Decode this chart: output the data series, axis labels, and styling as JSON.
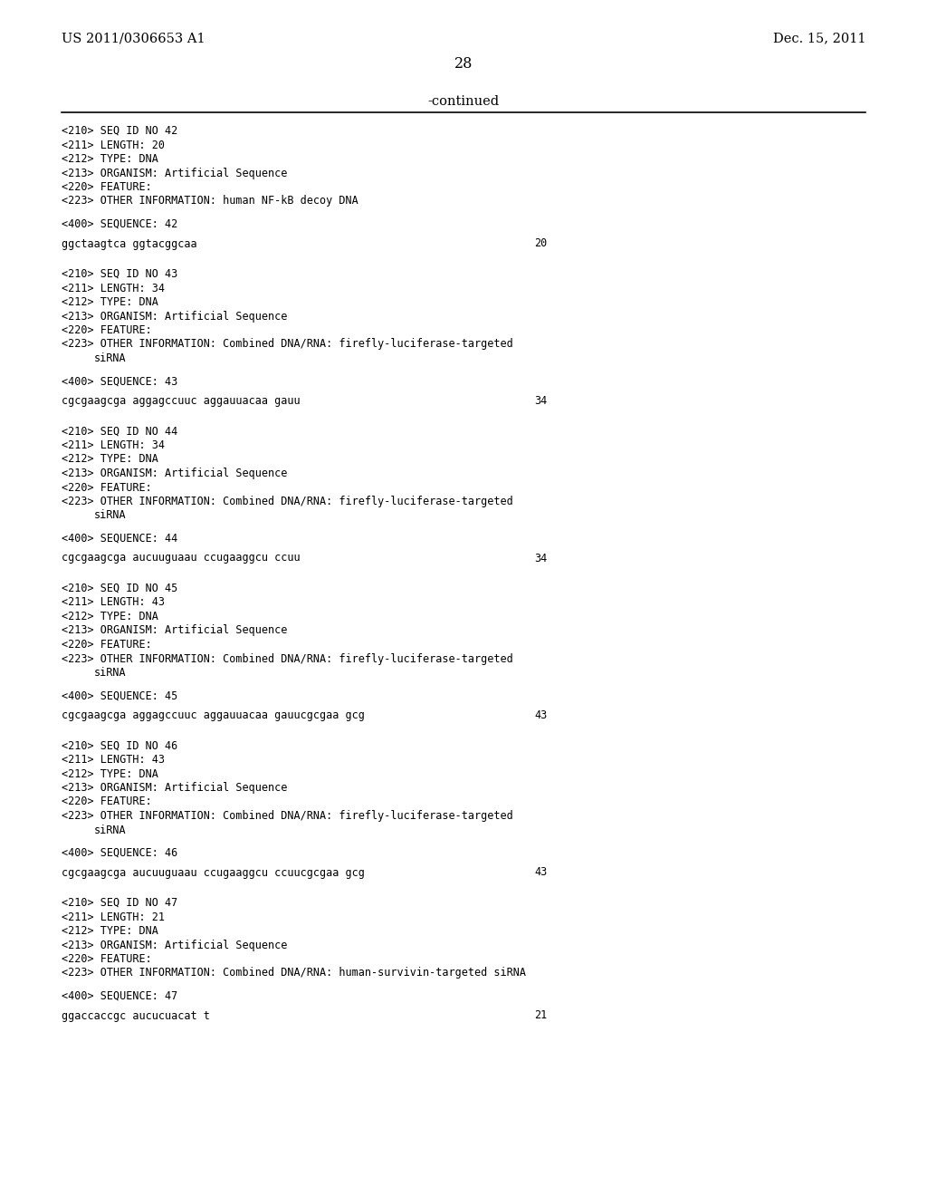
{
  "bg_color": "#ffffff",
  "header_left": "US 2011/0306653 A1",
  "header_right": "Dec. 15, 2011",
  "page_number": "28",
  "continued_text": "-continued",
  "entries": [
    {
      "seq_id": "42",
      "length": "20",
      "type": "DNA",
      "organism": "Artificial Sequence",
      "feature": "",
      "other_info": "human NF-kB decoy DNA",
      "other_info_line2": "",
      "sequence_num": "42",
      "sequence": "ggctaagtca ggtacggcaa",
      "seq_length_num": "20"
    },
    {
      "seq_id": "43",
      "length": "34",
      "type": "DNA",
      "organism": "Artificial Sequence",
      "feature": "",
      "other_info": "Combined DNA/RNA: firefly-luciferase-targeted",
      "other_info_line2": "siRNA",
      "sequence_num": "43",
      "sequence": "cgcgaagcga aggagccuuc aggauuacaa gauu",
      "seq_length_num": "34"
    },
    {
      "seq_id": "44",
      "length": "34",
      "type": "DNA",
      "organism": "Artificial Sequence",
      "feature": "",
      "other_info": "Combined DNA/RNA: firefly-luciferase-targeted",
      "other_info_line2": "siRNA",
      "sequence_num": "44",
      "sequence": "cgcgaagcga aucuuguaau ccugaaggcu ccuu",
      "seq_length_num": "34"
    },
    {
      "seq_id": "45",
      "length": "43",
      "type": "DNA",
      "organism": "Artificial Sequence",
      "feature": "",
      "other_info": "Combined DNA/RNA: firefly-luciferase-targeted",
      "other_info_line2": "siRNA",
      "sequence_num": "45",
      "sequence": "cgcgaagcga aggagccuuc aggauuacaa gauucgcgaa gcg",
      "seq_length_num": "43"
    },
    {
      "seq_id": "46",
      "length": "43",
      "type": "DNA",
      "organism": "Artificial Sequence",
      "feature": "",
      "other_info": "Combined DNA/RNA: firefly-luciferase-targeted",
      "other_info_line2": "siRNA",
      "sequence_num": "46",
      "sequence": "cgcgaagcga aucuuguaau ccugaaggcu ccuucgcgaa gcg",
      "seq_length_num": "43"
    },
    {
      "seq_id": "47",
      "length": "21",
      "type": "DNA",
      "organism": "Artificial Sequence",
      "feature": "",
      "other_info": "Combined DNA/RNA: human-survivin-targeted siRNA",
      "other_info_line2": "",
      "sequence_num": "47",
      "sequence": "ggaccaccgc aucucuacat t",
      "seq_length_num": "21"
    }
  ]
}
